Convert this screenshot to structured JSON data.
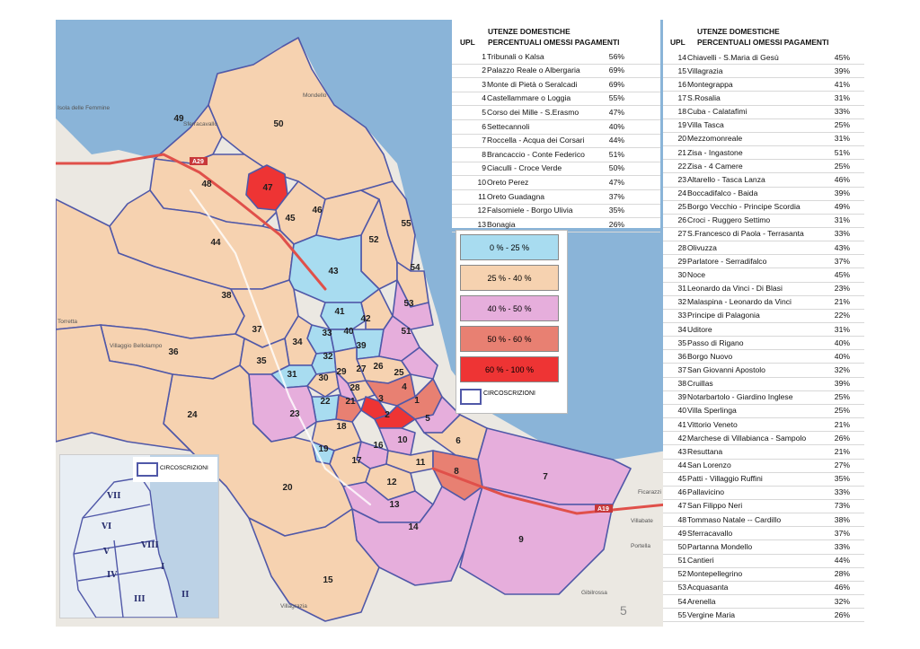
{
  "table1": {
    "upl_label": "UPL",
    "heading_line1": "UTENZE  DOMESTICHE",
    "heading_line2": "PERCENTUALI OMESSI PAGAMENTI",
    "rows": [
      {
        "n": "1",
        "name": "Tribunali o Kalsa",
        "pct": "56%"
      },
      {
        "n": "2",
        "name": "Palazzo Reale o Albergaria",
        "pct": "69%"
      },
      {
        "n": "3",
        "name": "Monte di Pietà o Seralcadi",
        "pct": "69%"
      },
      {
        "n": "4",
        "name": "Castellammare o Loggia",
        "pct": "55%"
      },
      {
        "n": "5",
        "name": "Corso dei Mille - S.Erasmo",
        "pct": "47%"
      },
      {
        "n": "6",
        "name": "Settecannoli",
        "pct": "40%"
      },
      {
        "n": "7",
        "name": "Roccella -  Acqua dei Corsari",
        "pct": "44%"
      },
      {
        "n": "8",
        "name": "Brancaccio -  Conte Federico",
        "pct": "51%"
      },
      {
        "n": "9",
        "name": "Ciaculli - Croce Verde",
        "pct": "50%"
      },
      {
        "n": "10",
        "name": "Oreto Perez",
        "pct": "47%"
      },
      {
        "n": "11",
        "name": "Oreto Guadagna",
        "pct": "37%"
      },
      {
        "n": "12",
        "name": "Falsomiele -  Borgo Ulivia",
        "pct": "35%"
      },
      {
        "n": "13",
        "name": "Bonagia",
        "pct": "26%"
      }
    ]
  },
  "table2": {
    "upl_label": "UPL",
    "heading_line1": "UTENZE   DOMESTICHE",
    "heading_line2": "PERCENTUALI OMESSI PAGAMENTI",
    "rows": [
      {
        "n": "14",
        "name": "Chiavelli - S.Maria di Gesù",
        "pct": "45%"
      },
      {
        "n": "15",
        "name": "Villagrazia",
        "pct": "39%"
      },
      {
        "n": "16",
        "name": "Montegrappa",
        "pct": "41%"
      },
      {
        "n": "17",
        "name": "S.Rosalia",
        "pct": "31%"
      },
      {
        "n": "18",
        "name": "Cuba - Calatafimi",
        "pct": "33%"
      },
      {
        "n": "19",
        "name": "Villa Tasca",
        "pct": "25%"
      },
      {
        "n": "20",
        "name": "Mezzomonreale",
        "pct": "31%"
      },
      {
        "n": "21",
        "name": "Zisa - Ingastone",
        "pct": "51%"
      },
      {
        "n": "22",
        "name": "Zisa - 4 Camere",
        "pct": "25%"
      },
      {
        "n": "23",
        "name": "Altarello - Tasca Lanza",
        "pct": "46%"
      },
      {
        "n": "24",
        "name": "Boccadifalco - Baida",
        "pct": "39%"
      },
      {
        "n": "25",
        "name": "Borgo Vecchio - Principe Scordia",
        "pct": "49%"
      },
      {
        "n": "26",
        "name": "Croci - Ruggero Settimo",
        "pct": "31%"
      },
      {
        "n": "27",
        "name": "S.Francesco di Paola - Terrasanta",
        "pct": "33%"
      },
      {
        "n": "28",
        "name": "Olivuzza",
        "pct": "43%"
      },
      {
        "n": "29",
        "name": "Parlatore - Serradifalco",
        "pct": "37%"
      },
      {
        "n": "30",
        "name": "Noce",
        "pct": "45%"
      },
      {
        "n": "31",
        "name": "Leonardo da Vinci - Di Blasi",
        "pct": "23%"
      },
      {
        "n": "32",
        "name": "Malaspina - Leonardo da Vinci",
        "pct": "21%"
      },
      {
        "n": "33",
        "name": "Principe di Palagonia",
        "pct": "22%"
      },
      {
        "n": "34",
        "name": "Uditore",
        "pct": "31%"
      },
      {
        "n": "35",
        "name": "Passo di Rigano",
        "pct": "40%"
      },
      {
        "n": "36",
        "name": "Borgo Nuovo",
        "pct": "40%"
      },
      {
        "n": "37",
        "name": "San Giovanni Apostolo",
        "pct": "32%"
      },
      {
        "n": "38",
        "name": "Cruillas",
        "pct": "39%"
      },
      {
        "n": "39",
        "name": "Notarbartolo - Giardino Inglese",
        "pct": "25%"
      },
      {
        "n": "40",
        "name": "Villa Sperlinga",
        "pct": "25%"
      },
      {
        "n": "41",
        "name": "Vittorio Veneto",
        "pct": "21%"
      },
      {
        "n": "42",
        "name": "Marchese di Villabianca - Sampolo",
        "pct": "26%"
      },
      {
        "n": "43",
        "name": "Resuttana",
        "pct": "21%"
      },
      {
        "n": "44",
        "name": "San Lorenzo",
        "pct": "27%"
      },
      {
        "n": "45",
        "name": "Patti - Villaggio Ruffini",
        "pct": "35%"
      },
      {
        "n": "46",
        "name": "Pallavicino",
        "pct": "33%"
      },
      {
        "n": "47",
        "name": "San Filippo Neri",
        "pct": "73%"
      },
      {
        "n": "48",
        "name": "Tommaso Natale -- Cardillo",
        "pct": "38%"
      },
      {
        "n": "49",
        "name": "Sferracavallo",
        "pct": "37%"
      },
      {
        "n": "50",
        "name": "Partanna Mondello",
        "pct": "33%"
      },
      {
        "n": "51",
        "name": "Cantieri",
        "pct": "44%"
      },
      {
        "n": "52",
        "name": "Montepellegrino",
        "pct": "28%"
      },
      {
        "n": "53",
        "name": "Acquasanta",
        "pct": "46%"
      },
      {
        "n": "54",
        "name": "Arenella",
        "pct": "32%"
      },
      {
        "n": "55",
        "name": "Vergine Maria",
        "pct": "26%"
      }
    ]
  },
  "legend": {
    "items": [
      {
        "label": "0 % - 25 %",
        "color": "#a8dcf0"
      },
      {
        "label": "25 % - 40 %",
        "color": "#f6d2b0"
      },
      {
        "label": "40 % - 50 %",
        "color": "#e6aedc"
      },
      {
        "label": "50 % - 60 %",
        "color": "#e88072"
      },
      {
        "label": "60 % - 100 %",
        "color": "#ee3434"
      }
    ],
    "circ_label": "CIRCOSCRIZIONI"
  },
  "map": {
    "colors": {
      "sea": "#8ab4d8",
      "land": "#ececec",
      "border": "#5058a8",
      "road_highway": "#e0504a",
      "road": "#ffffff"
    },
    "place_labels": [
      "Isola delle Femmine",
      "Sferracavallo",
      "Mondello",
      "Torretta",
      "Villaggio Bellolampo",
      "Villagrazia",
      "Ficarazzi",
      "Villabate",
      "Portella",
      "Gibilrossa"
    ],
    "road_labels": [
      "A29",
      "A19"
    ],
    "district_numbers": [
      "1",
      "2",
      "3",
      "4",
      "5",
      "6",
      "7",
      "8",
      "9",
      "10",
      "11",
      "12",
      "13",
      "14",
      "15",
      "16",
      "17",
      "18",
      "19",
      "20",
      "21",
      "22",
      "23",
      "24",
      "25",
      "26",
      "27",
      "28",
      "29",
      "30",
      "31",
      "32",
      "33",
      "34",
      "35",
      "36",
      "37",
      "38",
      "39",
      "40",
      "41",
      "42",
      "43",
      "44",
      "45",
      "46",
      "47",
      "48",
      "49",
      "50",
      "51",
      "52",
      "53",
      "54",
      "55"
    ]
  },
  "inset": {
    "legend_label": "CIRCOSCRIZIONI",
    "numerals": [
      "I",
      "II",
      "III",
      "IV",
      "V",
      "VI",
      "VII",
      "VIII"
    ]
  },
  "page_number": "5"
}
